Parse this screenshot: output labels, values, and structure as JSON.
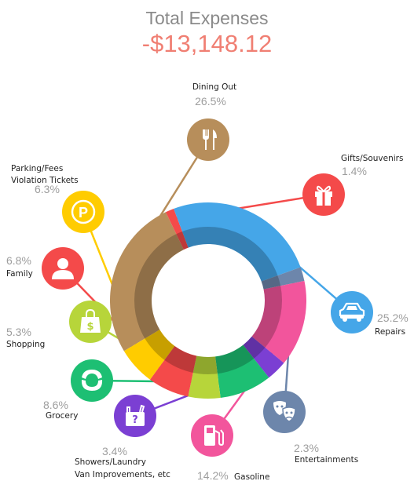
{
  "header": {
    "title": "Total Expenses",
    "total": "-$13,148.12"
  },
  "chart_data": {
    "type": "donut",
    "title": "Total Expenses",
    "units": "percent",
    "slices": [
      {
        "label": "Dining Out",
        "percent_text": "26.5%",
        "value": 26.5,
        "color": "#b78e5b",
        "icon": "fork-knife-icon"
      },
      {
        "label": "Gifts/Souvenirs",
        "percent_text": "1.4%",
        "value": 1.4,
        "color": "#f44a4a",
        "icon": "gift-icon"
      },
      {
        "label": "Repairs",
        "percent_text": "25.2%",
        "value": 25.2,
        "color": "#45a6e8",
        "icon": "car-icon"
      },
      {
        "label": "Entertainments",
        "percent_text": "2.3%",
        "value": 2.3,
        "color": "#6d86ab",
        "icon": "theater-masks-icon"
      },
      {
        "label": "Gasoline",
        "percent_text": "14.2%",
        "value": 14.2,
        "color": "#f2559c",
        "icon": "gas-pump-icon"
      },
      {
        "label": "Showers/Laundry Van Improvements, etc",
        "lines": [
          "Showers/Laundry",
          "Van Improvements, etc"
        ],
        "percent_text": "3.4%",
        "value": 3.4,
        "color": "#7b3fd3",
        "icon": "question-bag-icon"
      },
      {
        "label": "Grocery",
        "percent_text": "8.6%",
        "value": 8.6,
        "color": "#1dbf73",
        "icon": "croissant-icon"
      },
      {
        "label": "Shopping",
        "percent_text": "5.3%",
        "value": 5.3,
        "color": "#b7d53a",
        "icon": "shopping-bag-icon"
      },
      {
        "label": "Family",
        "percent_text": "6.8%",
        "value": 6.8,
        "color": "#f44a4a",
        "icon": "person-icon"
      },
      {
        "label": "Parking/Fees Violation Tickets",
        "lines": [
          "Parking/Fees",
          "Violation Tickets"
        ],
        "percent_text": "6.3%",
        "value": 6.3,
        "color": "#ffcc00",
        "icon": "parking-icon"
      }
    ]
  }
}
